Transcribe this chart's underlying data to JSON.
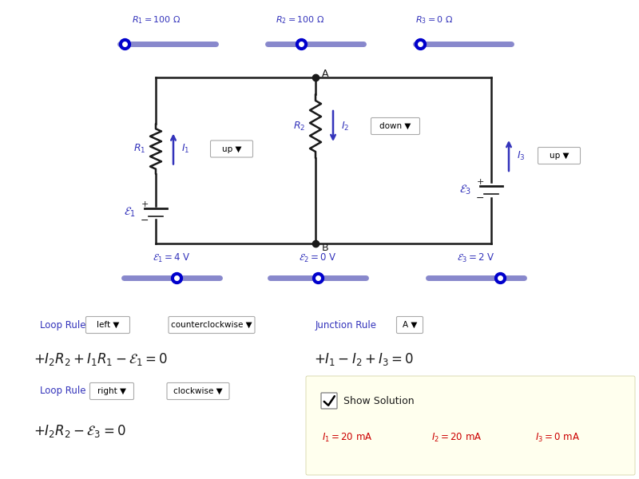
{
  "bg_color": "#ffffff",
  "circuit_color": "#1a1a1a",
  "blue_color": "#3333bb",
  "red_color": "#cc0000",
  "slider_color": "#8888cc",
  "slider_dot_color": "#0000cc",
  "yellow_bg": "#ffffee",
  "fig_w": 8.0,
  "fig_h": 6.0,
  "dpi": 100,
  "resistor_values": [
    "R₁ = 100 Ω",
    "R₂ = 100 Ω",
    "R₃ = 0 Ω"
  ],
  "emf_values": [
    "ε₁ = 4 V",
    "ε₂ = 0 V",
    "ε₃ = 2 V"
  ],
  "solution": [
    "I₁ = 20 mA",
    "I₂ = 20 mA",
    "I₃ = 0 mA"
  ]
}
